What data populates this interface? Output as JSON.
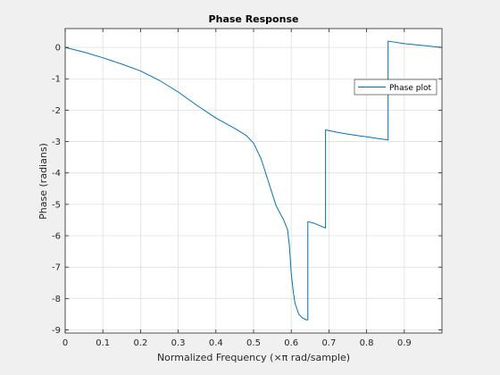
{
  "chart_data": {
    "type": "line",
    "title": "Phase Response",
    "xlabel": "Normalized Frequency (×π rad/sample)",
    "ylabel": "Phase (radians)",
    "xlim": [
      0,
      1
    ],
    "ylim": [
      -9.1,
      0.6
    ],
    "grid": true,
    "legend_placement": "upper right (inside axes)",
    "x_ticks": [
      0,
      0.1,
      0.2,
      0.3,
      0.4,
      0.5,
      0.6,
      0.7,
      0.8,
      0.9
    ],
    "x_tick_labels": [
      "0",
      "0.1",
      "0.2",
      "0.3",
      "0.4",
      "0.5",
      "0.6",
      "0.7",
      "0.8",
      "0.9"
    ],
    "y_ticks": [
      0,
      -1,
      -2,
      -3,
      -4,
      -5,
      -6,
      -7,
      -8,
      -9
    ],
    "y_tick_labels": [
      "0",
      "-1",
      "-2",
      "-3",
      "-4",
      "-5",
      "-6",
      "-7",
      "-8",
      "-9"
    ],
    "series": [
      {
        "name": "Phase plot",
        "color": "#0072bd",
        "x": [
          0,
          0.05,
          0.1,
          0.15,
          0.2,
          0.25,
          0.3,
          0.35,
          0.4,
          0.45,
          0.48,
          0.5,
          0.52,
          0.54,
          0.56,
          0.58,
          0.59,
          0.595,
          0.6,
          0.605,
          0.61,
          0.62,
          0.63,
          0.64,
          0.644,
          0.644,
          0.66,
          0.69,
          0.691,
          0.691,
          0.72,
          0.76,
          0.8,
          0.84,
          0.857,
          0.857,
          0.9,
          0.95,
          1.0
        ],
        "y": [
          0,
          -0.15,
          -0.33,
          -0.53,
          -0.75,
          -1.05,
          -1.42,
          -1.85,
          -2.25,
          -2.58,
          -2.8,
          -3.05,
          -3.55,
          -4.3,
          -5.05,
          -5.5,
          -5.8,
          -6.3,
          -7.2,
          -7.75,
          -8.15,
          -8.5,
          -8.62,
          -8.68,
          -8.68,
          -5.55,
          -5.6,
          -5.75,
          -5.75,
          -2.63,
          -2.7,
          -2.78,
          -2.85,
          -2.92,
          -2.95,
          0.2,
          0.12,
          0.06,
          0.0
        ]
      }
    ]
  },
  "legend": {
    "label": "Phase plot"
  }
}
